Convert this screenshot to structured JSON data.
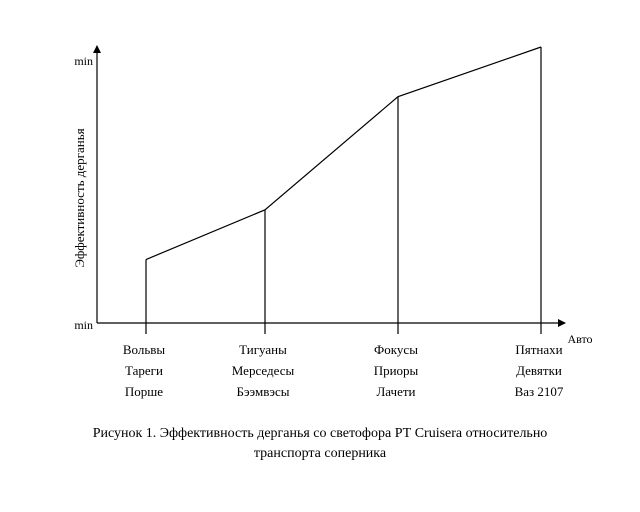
{
  "chart_data": {
    "type": "line",
    "title": "",
    "xlabel": "Авто",
    "ylabel": "Эффективность дерганья",
    "y_tick_labels": {
      "top": "min",
      "bottom": "min"
    },
    "ylim": [
      0,
      100
    ],
    "grid": false,
    "categories": [
      [
        "Вольвы",
        "Тареги",
        "Порше"
      ],
      [
        "Тигуаны",
        "Мерседесы",
        "Бээмвэсы"
      ],
      [
        "Фокусы",
        "Приоры",
        "Лачети"
      ],
      [
        "Пятнахи",
        "Девятки",
        "Ваз 2107"
      ]
    ],
    "values": [
      23,
      41,
      82,
      100
    ],
    "drop_lines": true
  },
  "caption": {
    "line1": "Рисунок 1. Эффективность дерганья со светофора РТ Cruisera относительно",
    "line2": "транспорта соперника"
  }
}
